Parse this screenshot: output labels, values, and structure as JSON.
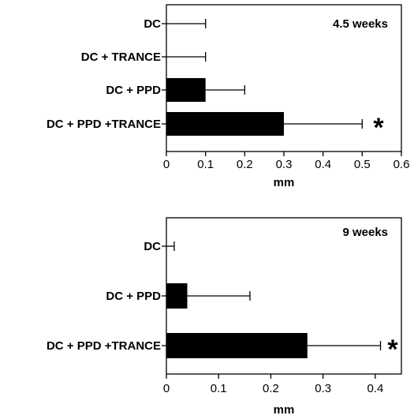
{
  "chart_data": [
    {
      "type": "bar",
      "orientation": "horizontal",
      "title": "4.5 weeks",
      "xlabel": "mm",
      "ylabel": "",
      "xlim": [
        0,
        0.6
      ],
      "xticks": [
        "0",
        "0.1",
        "0.2",
        "0.3",
        "0.4",
        "0.5",
        "0.6"
      ],
      "categories": [
        "DC",
        "DC + TRANCE",
        "DC + PPD",
        "DC + PPD +TRANCE"
      ],
      "values": [
        0,
        0,
        0.1,
        0.3
      ],
      "errors": [
        0.1,
        0.1,
        0.1,
        0.2
      ],
      "significance": [
        "",
        "",
        "",
        "*"
      ],
      "bar_color": "#000000",
      "grid": false,
      "legend": "none"
    },
    {
      "type": "bar",
      "orientation": "horizontal",
      "title": "9 weeks",
      "xlabel": "mm",
      "ylabel": "",
      "xlim": [
        0,
        0.45
      ],
      "xticks": [
        "0",
        "0.1",
        "0.2",
        "0.3",
        "0.4"
      ],
      "categories": [
        "DC",
        "DC + PPD",
        "DC + PPD +TRANCE"
      ],
      "values": [
        0,
        0.04,
        0.27
      ],
      "errors": [
        0.015,
        0.12,
        0.14
      ],
      "significance": [
        "",
        "",
        "*"
      ],
      "bar_color": "#000000",
      "grid": false,
      "legend": "none"
    }
  ]
}
